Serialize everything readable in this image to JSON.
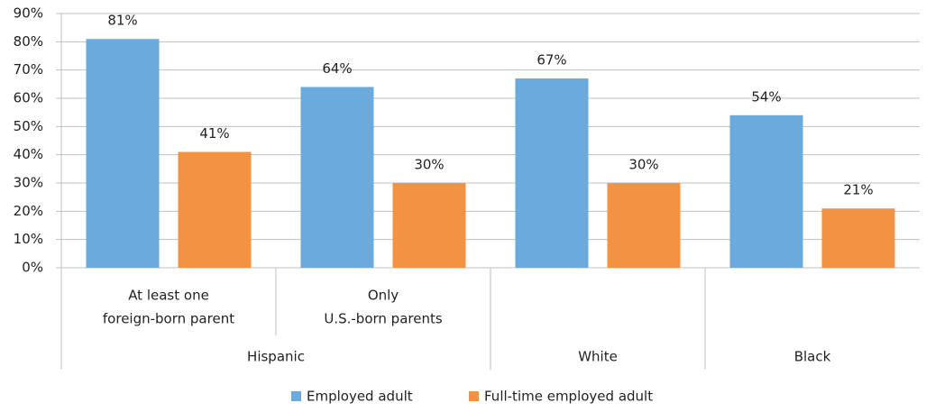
{
  "chart_data": {
    "type": "bar",
    "categories": [
      [
        "At least one",
        "foreign-born parent"
      ],
      [
        "Only",
        "U.S.-born parents"
      ],
      null,
      null
    ],
    "category_groups": [
      "Hispanic",
      "Hispanic",
      "White",
      "Black"
    ],
    "series": [
      {
        "name": "Employed adult",
        "color": "#6aaadc",
        "values": [
          81,
          64,
          67,
          54
        ],
        "value_labels": [
          "81%",
          "64%",
          "67%",
          "54%"
        ]
      },
      {
        "name": "Full-time employed adult",
        "color": "#f39240",
        "values": [
          41,
          30,
          30,
          21
        ],
        "value_labels": [
          "41%",
          "30%",
          "30%",
          "21%"
        ]
      }
    ],
    "ylim": [
      0,
      90
    ],
    "yticks": [
      {
        "value": 0,
        "label": "0%"
      },
      {
        "value": 10,
        "label": "10%"
      },
      {
        "value": 20,
        "label": "20%"
      },
      {
        "value": 30,
        "label": "30%"
      },
      {
        "value": 40,
        "label": "40%"
      },
      {
        "value": 50,
        "label": "50%"
      },
      {
        "value": 60,
        "label": "60%"
      },
      {
        "value": 70,
        "label": "70%"
      },
      {
        "value": 80,
        "label": "80%"
      },
      {
        "value": 90,
        "label": "90%"
      }
    ],
    "grid": true,
    "legend": "bottom"
  }
}
